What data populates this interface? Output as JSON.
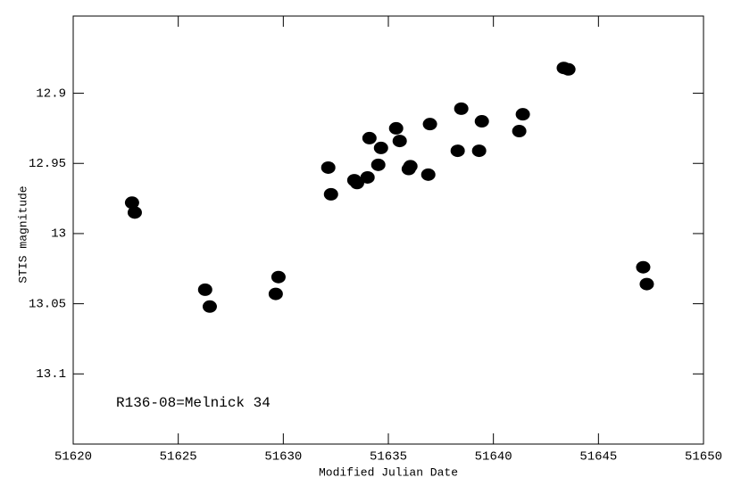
{
  "chart_data": {
    "type": "scatter",
    "xlabel": "Modified Julian Date",
    "ylabel": "STIS magnitude",
    "annotation": "R136-08=Melnick 34",
    "xlim": [
      51620,
      51650
    ],
    "xticks": [
      51620,
      51625,
      51630,
      51635,
      51640,
      51645,
      51650
    ],
    "ylim": [
      12.845,
      13.15
    ],
    "y_inverted": true,
    "yticks": [
      12.9,
      12.95,
      13,
      13.05,
      13.1
    ],
    "color": "#000000",
    "x": [
      51622.8,
      51622.93,
      51626.28,
      51626.5,
      51629.64,
      51629.77,
      51632.14,
      51632.27,
      51633.38,
      51633.51,
      51634.01,
      51634.1,
      51634.52,
      51634.65,
      51635.37,
      51635.54,
      51635.97,
      51636.05,
      51636.9,
      51636.98,
      51638.3,
      51638.47,
      51639.32,
      51639.45,
      51641.23,
      51641.4,
      51643.35,
      51643.57,
      51647.13,
      51647.3
    ],
    "values": [
      12.978,
      12.985,
      13.04,
      13.052,
      13.043,
      13.031,
      12.953,
      12.972,
      12.962,
      12.964,
      12.96,
      12.932,
      12.951,
      12.939,
      12.925,
      12.934,
      12.954,
      12.952,
      12.958,
      12.922,
      12.941,
      12.911,
      12.941,
      12.92,
      12.927,
      12.915,
      12.882,
      12.883,
      13.024,
      13.036
    ]
  }
}
